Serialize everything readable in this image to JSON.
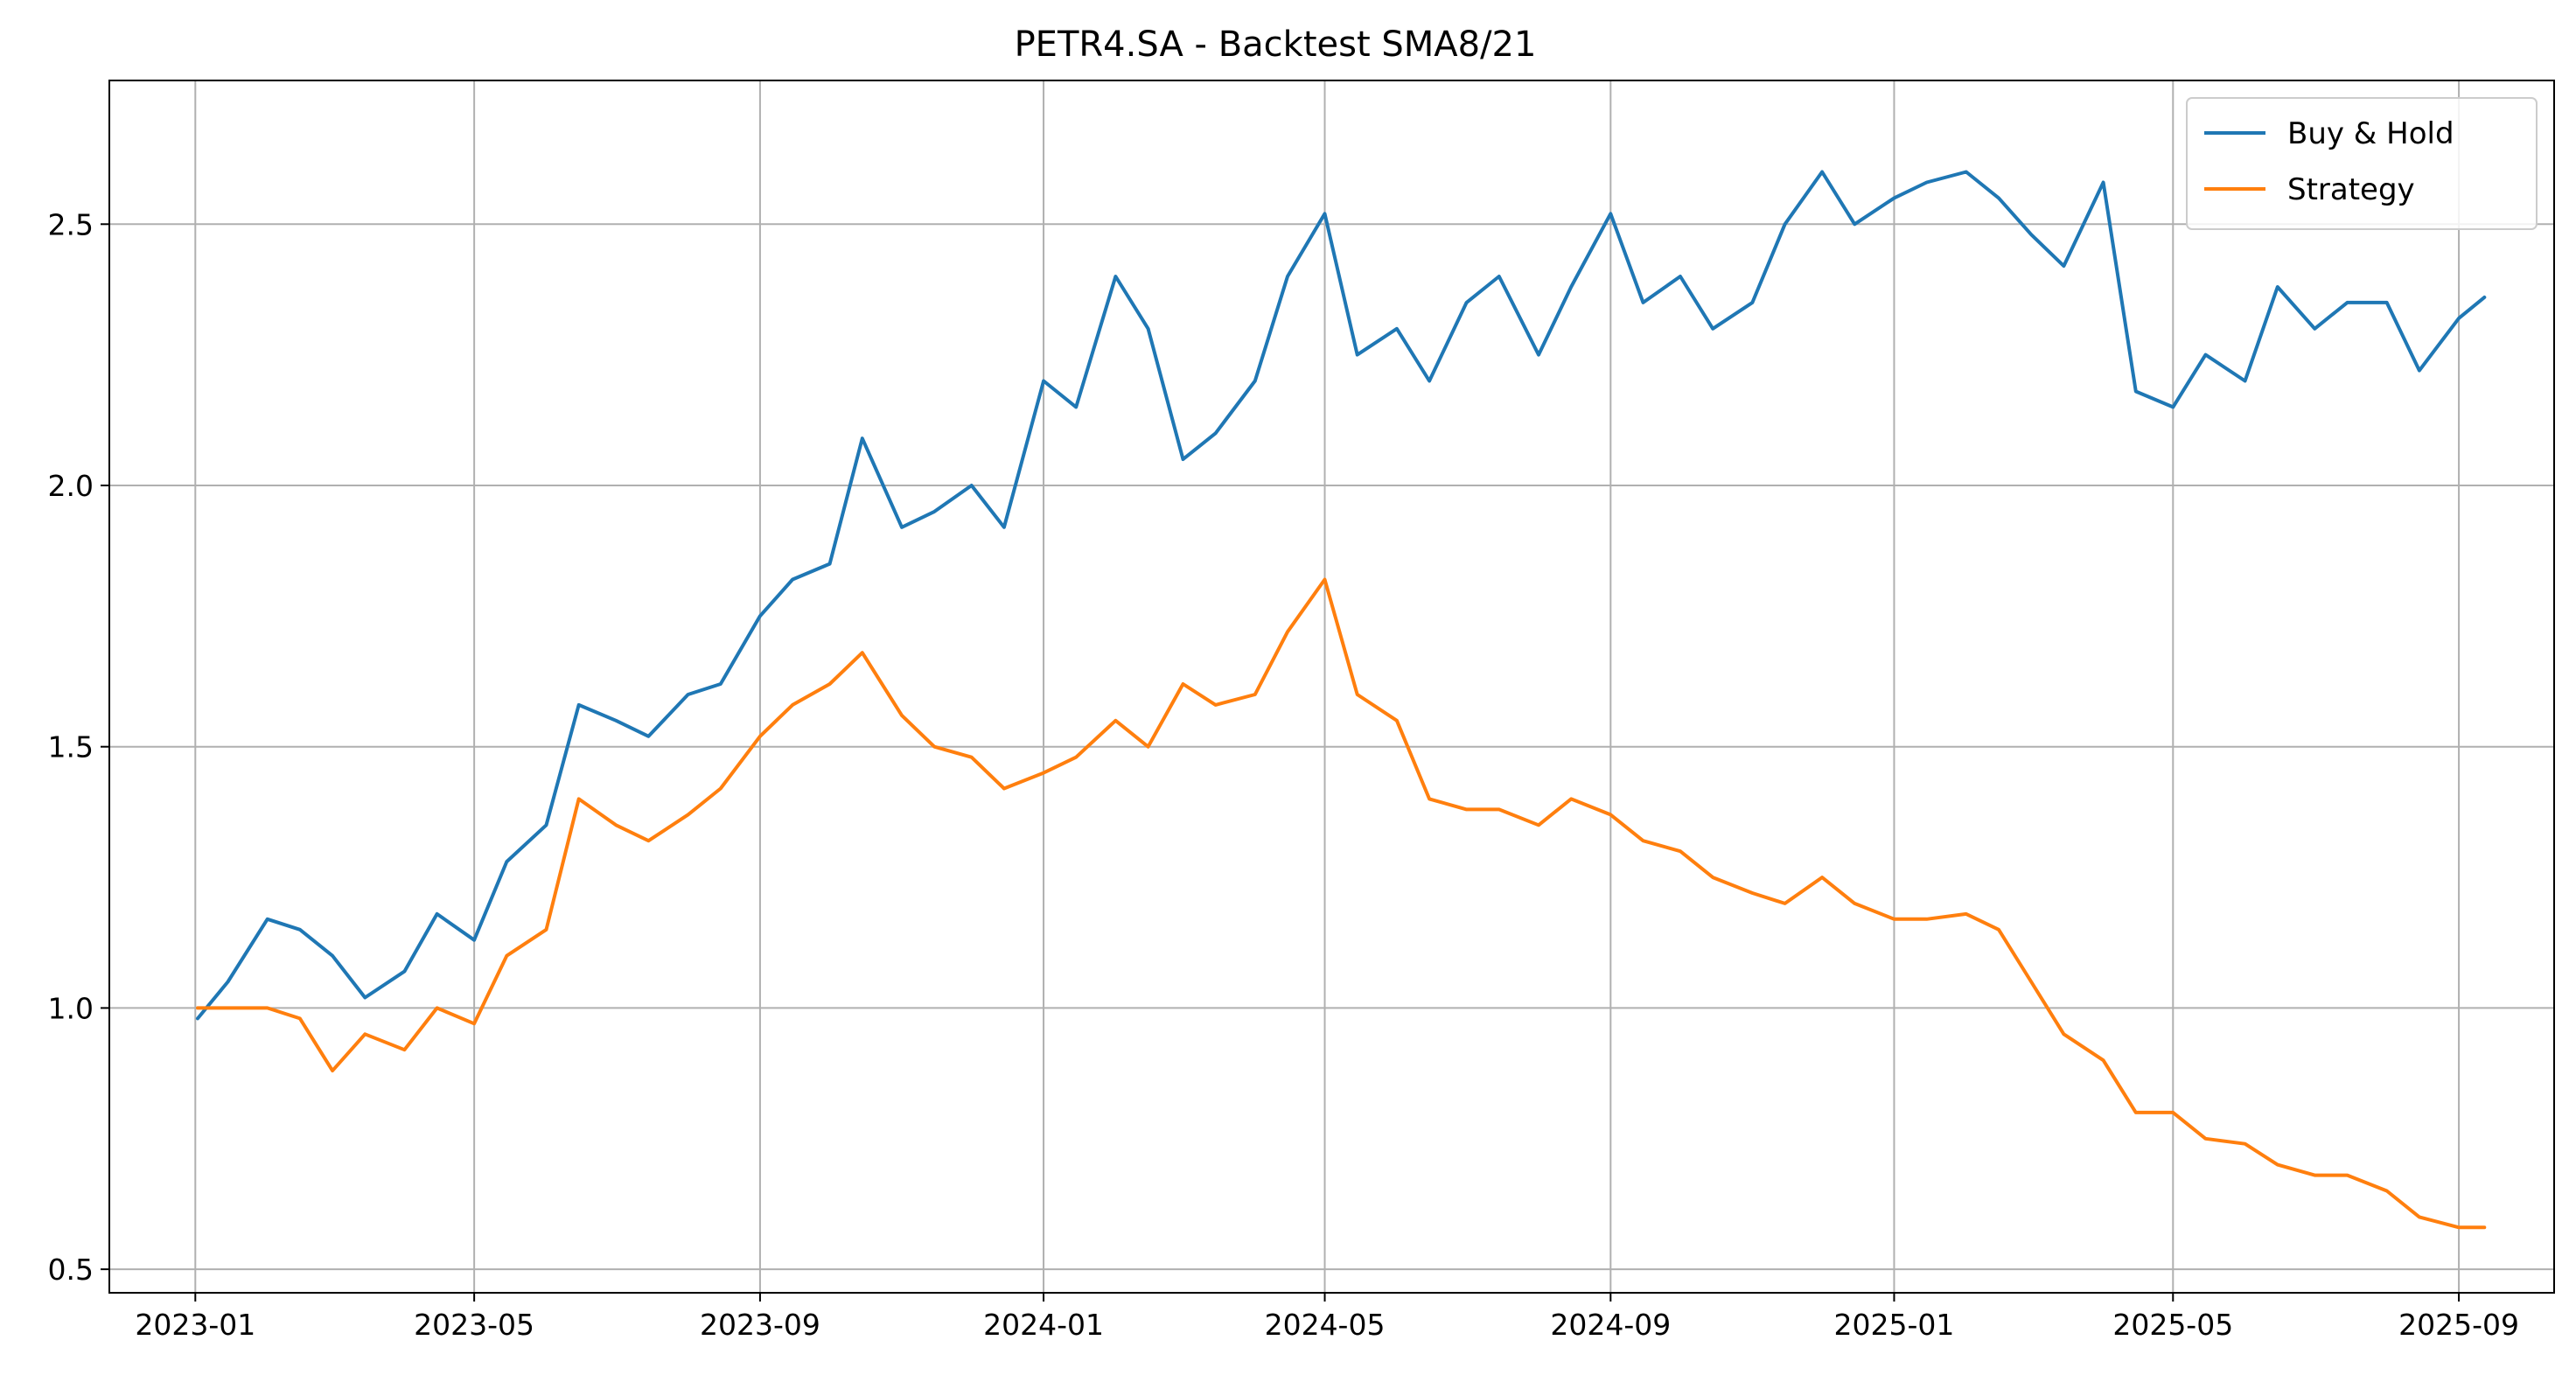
{
  "chart_data": {
    "type": "line",
    "title": "PETR4.SA - Backtest SMA8/21",
    "xlabel": "",
    "ylabel": "",
    "x_ticks": [
      "2023-01-01",
      "2023-05-01",
      "2023-09-01",
      "2024-01-01",
      "2024-05-01",
      "2024-09-01",
      "2025-01-01",
      "2025-05-01",
      "2025-09-01"
    ],
    "x_tick_labels": [
      "2023-01",
      "2023-05",
      "2023-09",
      "2024-01",
      "2024-05",
      "2024-09",
      "2025-01",
      "2025-05",
      "2025-09"
    ],
    "xlim": [
      "2022-11-25",
      "2025-10-12"
    ],
    "y_ticks": [
      0.5,
      1.0,
      1.5,
      2.0,
      2.5
    ],
    "y_tick_labels": [
      "0.5",
      "1.0",
      "1.5",
      "2.0",
      "2.5"
    ],
    "ylim": [
      0.455,
      2.775
    ],
    "grid": true,
    "legend_position": "top-right",
    "x": [
      "2023-01-02",
      "2023-01-15",
      "2023-02-01",
      "2023-02-15",
      "2023-03-01",
      "2023-03-15",
      "2023-04-01",
      "2023-04-15",
      "2023-05-01",
      "2023-05-15",
      "2023-06-01",
      "2023-06-15",
      "2023-07-01",
      "2023-07-15",
      "2023-08-01",
      "2023-08-15",
      "2023-09-01",
      "2023-09-15",
      "2023-10-01",
      "2023-10-15",
      "2023-11-01",
      "2023-11-15",
      "2023-12-01",
      "2023-12-15",
      "2024-01-01",
      "2024-01-15",
      "2024-02-01",
      "2024-02-15",
      "2024-03-01",
      "2024-03-15",
      "2024-04-01",
      "2024-04-15",
      "2024-05-01",
      "2024-05-15",
      "2024-06-01",
      "2024-06-15",
      "2024-07-01",
      "2024-07-15",
      "2024-08-01",
      "2024-08-15",
      "2024-09-01",
      "2024-09-15",
      "2024-10-01",
      "2024-10-15",
      "2024-11-01",
      "2024-11-15",
      "2024-12-01",
      "2024-12-15",
      "2025-01-01",
      "2025-01-15",
      "2025-02-01",
      "2025-02-15",
      "2025-03-01",
      "2025-03-15",
      "2025-04-01",
      "2025-04-15",
      "2025-05-01",
      "2025-05-15",
      "2025-06-01",
      "2025-06-15",
      "2025-07-01",
      "2025-07-15",
      "2025-08-01",
      "2025-08-15",
      "2025-09-01",
      "2025-09-12"
    ],
    "series": [
      {
        "name": "Buy & Hold",
        "color": "#1f77b4",
        "values": [
          0.98,
          1.05,
          1.17,
          1.15,
          1.1,
          1.02,
          1.07,
          1.18,
          1.13,
          1.28,
          1.35,
          1.58,
          1.55,
          1.52,
          1.6,
          1.62,
          1.75,
          1.82,
          1.85,
          2.09,
          1.92,
          1.95,
          2.0,
          1.92,
          2.2,
          2.15,
          2.4,
          2.3,
          2.05,
          2.1,
          2.2,
          2.4,
          2.52,
          2.25,
          2.3,
          2.2,
          2.35,
          2.4,
          2.25,
          2.38,
          2.52,
          2.35,
          2.4,
          2.3,
          2.35,
          2.5,
          2.6,
          2.5,
          2.55,
          2.58,
          2.6,
          2.55,
          2.48,
          2.42,
          2.58,
          2.18,
          2.15,
          2.25,
          2.2,
          2.38,
          2.3,
          2.35,
          2.35,
          2.22,
          2.32,
          2.36
        ]
      },
      {
        "name": "Strategy",
        "color": "#ff7f0e",
        "values": [
          1.0,
          1.0,
          1.0,
          0.98,
          0.88,
          0.95,
          0.92,
          1.0,
          0.97,
          1.1,
          1.15,
          1.4,
          1.35,
          1.32,
          1.37,
          1.42,
          1.52,
          1.58,
          1.62,
          1.68,
          1.56,
          1.5,
          1.48,
          1.42,
          1.45,
          1.48,
          1.55,
          1.5,
          1.62,
          1.58,
          1.6,
          1.72,
          1.82,
          1.6,
          1.55,
          1.4,
          1.38,
          1.38,
          1.35,
          1.4,
          1.37,
          1.32,
          1.3,
          1.25,
          1.22,
          1.2,
          1.25,
          1.2,
          1.17,
          1.17,
          1.18,
          1.15,
          1.05,
          0.95,
          0.9,
          0.8,
          0.8,
          0.75,
          0.74,
          0.7,
          0.68,
          0.68,
          0.65,
          0.6,
          0.58,
          0.58
        ]
      }
    ]
  }
}
